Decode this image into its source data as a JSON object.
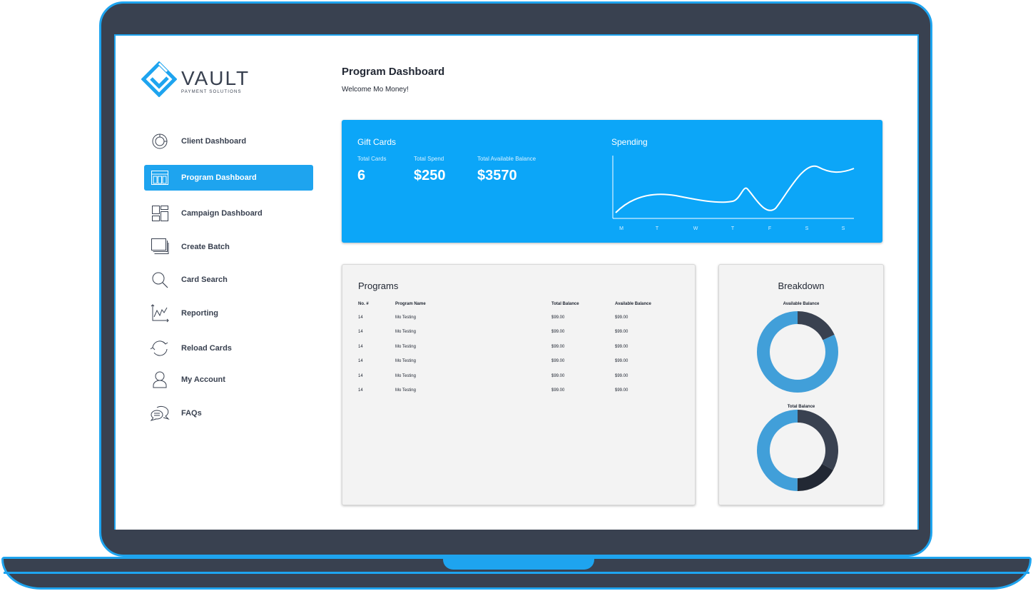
{
  "brand": {
    "name": "VAULT",
    "tagline": "PAYMENT SOLUTIONS"
  },
  "colors": {
    "accent": "#1ea4ef",
    "card_blue": "#0ca6f8",
    "frame": "#394150",
    "donut_light": "#419fd9",
    "donut_dark": "#394150",
    "donut_darker": "#222834"
  },
  "sidebar": {
    "items": [
      {
        "label": "Client Dashboard",
        "icon": "pie-chart-icon"
      },
      {
        "label": "Program Dashboard",
        "icon": "layout-columns-icon",
        "active": true
      },
      {
        "label": "Campaign Dashboard",
        "icon": "dashboard-grid-icon"
      },
      {
        "label": "Create Batch",
        "icon": "stack-icon"
      },
      {
        "label": "Card Search",
        "icon": "search-icon"
      },
      {
        "label": "Reporting",
        "icon": "line-chart-icon"
      },
      {
        "label": "Reload Cards",
        "icon": "refresh-icon"
      },
      {
        "label": "My Account",
        "icon": "user-icon"
      },
      {
        "label": "FAQs",
        "icon": "chat-icon"
      }
    ]
  },
  "header": {
    "title": "Program Dashboard",
    "welcome": "Welcome Mo Money!"
  },
  "gift_cards": {
    "title": "Gift Cards",
    "stats": [
      {
        "label": "Total Cards",
        "value": "6"
      },
      {
        "label": "Total Spend",
        "value": "$250"
      },
      {
        "label": "Total Available Balance",
        "value": "$3570"
      }
    ]
  },
  "spending": {
    "title": "Spending",
    "days": [
      "M",
      "T",
      "W",
      "T",
      "F",
      "S",
      "S"
    ]
  },
  "programs": {
    "title": "Programs",
    "columns": [
      "No. #",
      "Program Name",
      "Total Balance",
      "Available Balance"
    ],
    "rows": [
      [
        "14",
        "Mo Testing",
        "$99.00",
        "$99.00"
      ],
      [
        "14",
        "Mo Testing",
        "$99.00",
        "$99.00"
      ],
      [
        "14",
        "Mo Testing",
        "$99.00",
        "$99.00"
      ],
      [
        "14",
        "Mo Testing",
        "$99.00",
        "$99.00"
      ],
      [
        "14",
        "Mo Testing",
        "$99.00",
        "$99.00"
      ],
      [
        "14",
        "Mo Testing",
        "$99.00",
        "$99.00"
      ]
    ]
  },
  "breakdown": {
    "title": "Breakdown",
    "charts": [
      {
        "label": "Available Balance",
        "segments": [
          {
            "share": 0.18,
            "color": "#394150"
          },
          {
            "share": 0.82,
            "color": "#419fd9"
          }
        ]
      },
      {
        "label": "Total Balance",
        "segments": [
          {
            "share": 0.33,
            "color": "#394150"
          },
          {
            "share": 0.17,
            "color": "#222834"
          },
          {
            "share": 0.5,
            "color": "#419fd9"
          }
        ]
      }
    ]
  }
}
